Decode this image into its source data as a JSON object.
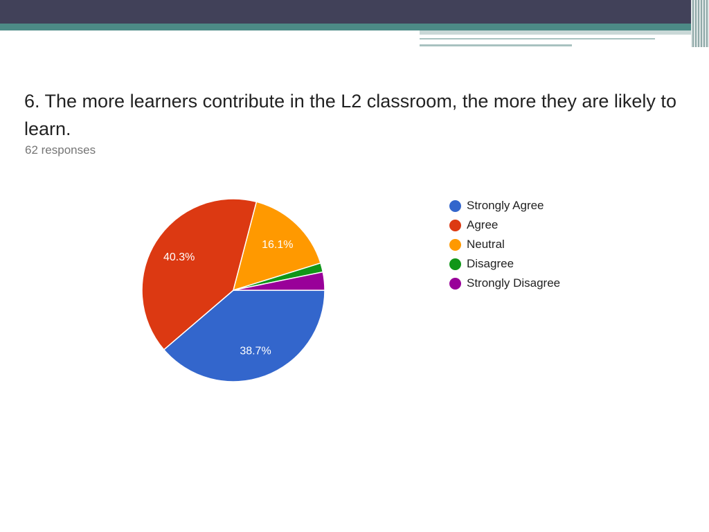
{
  "question": {
    "title": "6. The more learners contribute in the L2 classroom, the more they are likely to learn.",
    "responses": "62 responses"
  },
  "chart_data": {
    "type": "pie",
    "categories": [
      "Strongly Agree",
      "Agree",
      "Neutral",
      "Disagree",
      "Strongly Disagree"
    ],
    "values": [
      38.7,
      40.3,
      16.1,
      1.6,
      3.2
    ],
    "labels": [
      "38.7%",
      "40.3%",
      "16.1%",
      "",
      ""
    ],
    "colors": [
      "#3366cc",
      "#dc3912",
      "#ff9900",
      "#109618",
      "#990099"
    ],
    "legend_position": "right",
    "start": "3 o'clock",
    "direction": "clockwise"
  },
  "legend": {
    "items": [
      {
        "label": "Strongly Agree",
        "color": "#3366cc"
      },
      {
        "label": "Agree",
        "color": "#dc3912"
      },
      {
        "label": "Neutral",
        "color": "#ff9900"
      },
      {
        "label": "Disagree",
        "color": "#109618"
      },
      {
        "label": "Strongly Disagree",
        "color": "#990099"
      }
    ]
  }
}
